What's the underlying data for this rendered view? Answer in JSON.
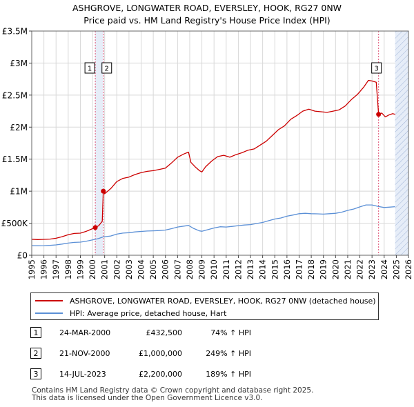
{
  "title_line1": "ASHGROVE, LONGWATER ROAD, EVERSLEY, HOOK, RG27 0NW",
  "title_line2": "Price paid vs. HM Land Registry's House Price Index (HPI)",
  "colors": {
    "property": "#cc0000",
    "hpi": "#5a8fd6",
    "marker_line": "#e05577",
    "shade": "#e6edf8",
    "hatch": "#9fb3d6",
    "grid": "#d8d8d8"
  },
  "chart_data": {
    "type": "line",
    "xlim": [
      1995,
      2026
    ],
    "ylim": [
      0,
      3500000
    ],
    "x_ticks": [
      "1995",
      "1996",
      "1997",
      "1998",
      "1999",
      "2000",
      "2001",
      "2002",
      "2003",
      "2004",
      "2005",
      "2006",
      "2007",
      "2008",
      "2009",
      "2010",
      "2011",
      "2012",
      "2013",
      "2014",
      "2015",
      "2016",
      "2017",
      "2018",
      "2019",
      "2020",
      "2021",
      "2022",
      "2023",
      "2024",
      "2025",
      "2026"
    ],
    "y_ticks": [
      {
        "value": 0,
        "label": "£0"
      },
      {
        "value": 500000,
        "label": "£500K"
      },
      {
        "value": 1000000,
        "label": "£1M"
      },
      {
        "value": 1500000,
        "label": "£1.5M"
      },
      {
        "value": 2000000,
        "label": "£2M"
      },
      {
        "value": 2500000,
        "label": "£2.5M"
      },
      {
        "value": 3000000,
        "label": "£3M"
      },
      {
        "value": 3500000,
        "label": "£3.5M"
      }
    ],
    "shaded_span": [
      2000.23,
      2000.89
    ],
    "future_from": 2024.9,
    "series": [
      {
        "name": "ASHGROVE, LONGWATER ROAD, EVERSLEY, HOOK, RG27 0NW (detached house)",
        "color": "#cc0000",
        "points": [
          [
            1995.0,
            250000
          ],
          [
            1995.5,
            245000
          ],
          [
            1996.0,
            248000
          ],
          [
            1996.5,
            252000
          ],
          [
            1997.0,
            265000
          ],
          [
            1997.5,
            290000
          ],
          [
            1998.0,
            320000
          ],
          [
            1998.5,
            340000
          ],
          [
            1999.0,
            345000
          ],
          [
            1999.5,
            375000
          ],
          [
            2000.0,
            415000
          ],
          [
            2000.23,
            432500
          ],
          [
            2000.5,
            460000
          ],
          [
            2000.8,
            530000
          ],
          [
            2000.89,
            1000000
          ],
          [
            2001.0,
            960000
          ],
          [
            2001.5,
            1040000
          ],
          [
            2002.0,
            1150000
          ],
          [
            2002.5,
            1200000
          ],
          [
            2003.0,
            1220000
          ],
          [
            2003.5,
            1260000
          ],
          [
            2004.0,
            1290000
          ],
          [
            2004.5,
            1310000
          ],
          [
            2005.0,
            1320000
          ],
          [
            2005.5,
            1340000
          ],
          [
            2006.0,
            1360000
          ],
          [
            2006.5,
            1440000
          ],
          [
            2007.0,
            1530000
          ],
          [
            2007.5,
            1580000
          ],
          [
            2007.9,
            1610000
          ],
          [
            2008.1,
            1450000
          ],
          [
            2008.5,
            1370000
          ],
          [
            2008.8,
            1320000
          ],
          [
            2009.0,
            1300000
          ],
          [
            2009.3,
            1380000
          ],
          [
            2009.8,
            1470000
          ],
          [
            2010.3,
            1540000
          ],
          [
            2010.8,
            1560000
          ],
          [
            2011.3,
            1530000
          ],
          [
            2011.8,
            1570000
          ],
          [
            2012.3,
            1600000
          ],
          [
            2012.8,
            1640000
          ],
          [
            2013.3,
            1660000
          ],
          [
            2013.8,
            1720000
          ],
          [
            2014.3,
            1780000
          ],
          [
            2014.8,
            1870000
          ],
          [
            2015.3,
            1960000
          ],
          [
            2015.8,
            2020000
          ],
          [
            2016.3,
            2120000
          ],
          [
            2016.8,
            2180000
          ],
          [
            2017.3,
            2250000
          ],
          [
            2017.8,
            2280000
          ],
          [
            2018.3,
            2250000
          ],
          [
            2018.8,
            2240000
          ],
          [
            2019.3,
            2230000
          ],
          [
            2019.8,
            2250000
          ],
          [
            2020.3,
            2270000
          ],
          [
            2020.8,
            2330000
          ],
          [
            2021.3,
            2430000
          ],
          [
            2021.8,
            2510000
          ],
          [
            2022.3,
            2620000
          ],
          [
            2022.7,
            2730000
          ],
          [
            2023.0,
            2720000
          ],
          [
            2023.35,
            2700000
          ],
          [
            2023.54,
            2200000
          ],
          [
            2023.8,
            2220000
          ],
          [
            2024.1,
            2160000
          ],
          [
            2024.4,
            2190000
          ],
          [
            2024.7,
            2210000
          ],
          [
            2024.9,
            2200000
          ]
        ]
      },
      {
        "name": "HPI: Average price, detached house, Hart",
        "color": "#5a8fd6",
        "points": [
          [
            1995.0,
            150000
          ],
          [
            1995.5,
            148000
          ],
          [
            1996.0,
            150000
          ],
          [
            1996.5,
            154000
          ],
          [
            1997.0,
            162000
          ],
          [
            1997.5,
            175000
          ],
          [
            1998.0,
            190000
          ],
          [
            1998.5,
            200000
          ],
          [
            1999.0,
            205000
          ],
          [
            1999.5,
            220000
          ],
          [
            2000.0,
            240000
          ],
          [
            2000.23,
            249000
          ],
          [
            2000.5,
            262000
          ],
          [
            2000.89,
            287000
          ],
          [
            2001.5,
            300000
          ],
          [
            2002.0,
            330000
          ],
          [
            2002.5,
            346000
          ],
          [
            2003.0,
            352000
          ],
          [
            2003.5,
            364000
          ],
          [
            2004.0,
            372000
          ],
          [
            2004.5,
            378000
          ],
          [
            2005.0,
            381000
          ],
          [
            2005.5,
            386000
          ],
          [
            2006.0,
            393000
          ],
          [
            2006.5,
            415000
          ],
          [
            2007.0,
            440000
          ],
          [
            2007.5,
            455000
          ],
          [
            2007.9,
            465000
          ],
          [
            2008.3,
            420000
          ],
          [
            2008.8,
            380000
          ],
          [
            2009.0,
            375000
          ],
          [
            2009.5,
            400000
          ],
          [
            2010.0,
            425000
          ],
          [
            2010.5,
            445000
          ],
          [
            2011.0,
            440000
          ],
          [
            2011.5,
            450000
          ],
          [
            2012.0,
            462000
          ],
          [
            2012.5,
            472000
          ],
          [
            2013.0,
            478000
          ],
          [
            2013.5,
            495000
          ],
          [
            2014.0,
            512000
          ],
          [
            2014.5,
            540000
          ],
          [
            2015.0,
            565000
          ],
          [
            2015.5,
            582000
          ],
          [
            2016.0,
            610000
          ],
          [
            2016.5,
            628000
          ],
          [
            2017.0,
            648000
          ],
          [
            2017.5,
            655000
          ],
          [
            2018.0,
            648000
          ],
          [
            2018.5,
            646000
          ],
          [
            2019.0,
            642000
          ],
          [
            2019.5,
            648000
          ],
          [
            2020.0,
            655000
          ],
          [
            2020.5,
            672000
          ],
          [
            2021.0,
            700000
          ],
          [
            2021.5,
            722000
          ],
          [
            2022.0,
            755000
          ],
          [
            2022.5,
            785000
          ],
          [
            2023.0,
            785000
          ],
          [
            2023.54,
            760000
          ],
          [
            2024.0,
            745000
          ],
          [
            2024.5,
            752000
          ],
          [
            2024.9,
            758000
          ]
        ]
      }
    ],
    "markers": [
      {
        "label": "1",
        "x": 2000.23,
        "y": 432500
      },
      {
        "label": "2",
        "x": 2000.89,
        "y": 1000000
      },
      {
        "label": "3",
        "x": 2023.54,
        "y": 2200000
      }
    ]
  },
  "legend": {
    "property_label": "ASHGROVE, LONGWATER ROAD, EVERSLEY, HOOK, RG27 0NW (detached house)",
    "hpi_label": "HPI: Average price, detached house, Hart"
  },
  "sales": [
    {
      "num": "1",
      "date": "24-MAR-2000",
      "price": "£432,500",
      "hpi": "74% ↑ HPI"
    },
    {
      "num": "2",
      "date": "21-NOV-2000",
      "price": "£1,000,000",
      "hpi": "249% ↑ HPI"
    },
    {
      "num": "3",
      "date": "14-JUL-2023",
      "price": "£2,200,000",
      "hpi": "189% ↑ HPI"
    }
  ],
  "footer_line1": "Contains HM Land Registry data © Crown copyright and database right 2025.",
  "footer_line2": "This data is licensed under the Open Government Licence v3.0."
}
